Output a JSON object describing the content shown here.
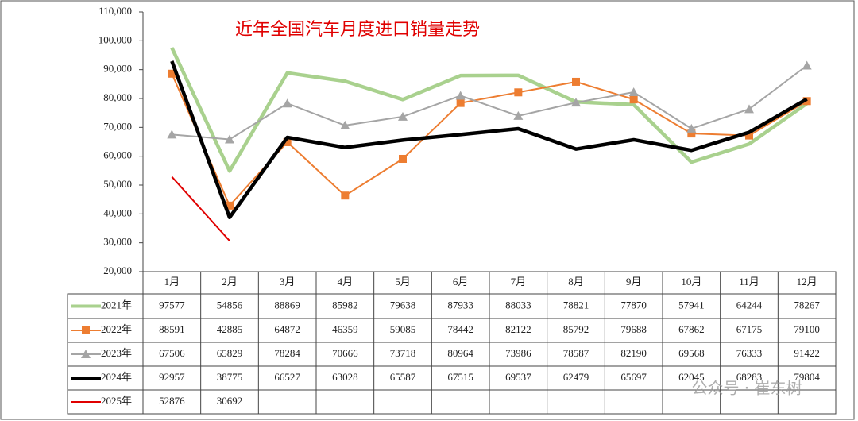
{
  "chart_data": {
    "type": "line",
    "title": "近年全国汽车月度进口销量走势",
    "categories": [
      "1月",
      "2月",
      "3月",
      "4月",
      "5月",
      "6月",
      "7月",
      "8月",
      "9月",
      "10月",
      "11月",
      "12月"
    ],
    "series": [
      {
        "name": "2021年",
        "color": "#a9d18e",
        "values": [
          97577,
          54856,
          88869,
          85982,
          79638,
          87933,
          88033,
          78821,
          77870,
          57941,
          64244,
          78267
        ]
      },
      {
        "name": "2022年",
        "color": "#ed7d31",
        "marker": "square",
        "values": [
          88591,
          42885,
          64872,
          46359,
          59085,
          78442,
          82122,
          85792,
          79688,
          67862,
          67175,
          79100
        ]
      },
      {
        "name": "2023年",
        "color": "#a5a5a5",
        "marker": "triangle",
        "values": [
          67506,
          65829,
          78284,
          70666,
          73718,
          80964,
          73986,
          78587,
          82190,
          69568,
          76333,
          91422
        ]
      },
      {
        "name": "2024年",
        "color": "#000000",
        "values": [
          92957,
          38775,
          66527,
          63028,
          65587,
          67515,
          69537,
          62479,
          65697,
          62045,
          68283,
          79804
        ]
      },
      {
        "name": "2025年",
        "color": "#e00000",
        "values": [
          52876,
          30692,
          null,
          null,
          null,
          null,
          null,
          null,
          null,
          null,
          null,
          null
        ]
      }
    ],
    "ylim": [
      20000,
      110000
    ],
    "yticks": [
      {
        "value": 20000,
        "label": "20,000"
      },
      {
        "value": 30000,
        "label": "30,000"
      },
      {
        "value": 40000,
        "label": "40,000"
      },
      {
        "value": 50000,
        "label": "50,000"
      },
      {
        "value": 60000,
        "label": "60,000"
      },
      {
        "value": 70000,
        "label": "70,000"
      },
      {
        "value": 80000,
        "label": "80,000"
      },
      {
        "value": 90000,
        "label": "90,000"
      },
      {
        "value": 100000,
        "label": "100,000"
      },
      {
        "value": 110000,
        "label": "110,000"
      }
    ],
    "watermark": "公众号 · 崔东树"
  }
}
